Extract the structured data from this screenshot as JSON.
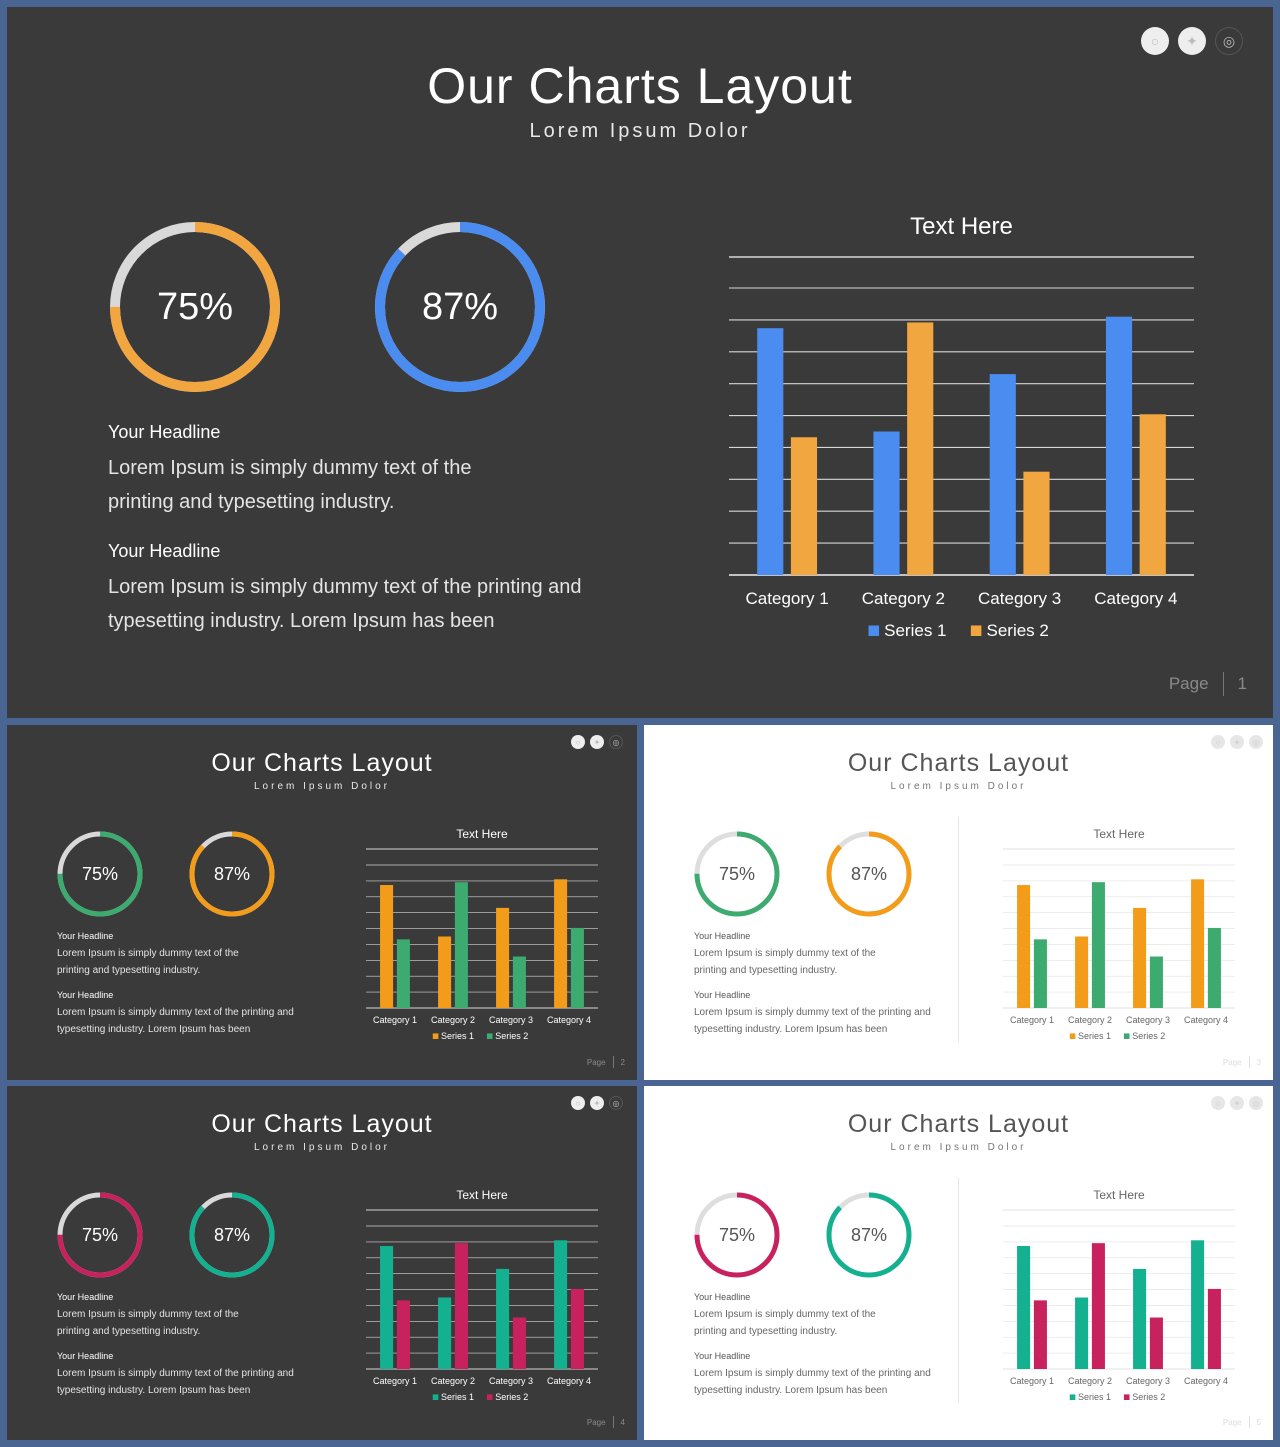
{
  "colors": {
    "blue": "#4a8cf0",
    "orange": "#f2a640",
    "amber": "#f39c1a",
    "green": "#3daa6f",
    "crimson": "#c8225e",
    "teal": "#14b191",
    "ring_track_dark": "#d9d9d9",
    "ring_track_light": "#dedede"
  },
  "slides": [
    {
      "id": "slide-1",
      "theme": "dark",
      "title": "Our Charts Layout",
      "subtitle": "Lorem Ipsum Dolor",
      "social_icons": [
        "pinterest-icon",
        "twitter-icon",
        "dribbble-icon"
      ],
      "donuts": [
        {
          "label": "75%",
          "value": 0.75,
          "color": "#f2a640"
        },
        {
          "label": "87%",
          "value": 0.87,
          "color": "#4a8cf0"
        }
      ],
      "blocks": [
        {
          "headline": "Your Headline",
          "body_lines": [
            "Lorem Ipsum is simply dummy text of the",
            "printing and typesetting industry."
          ]
        },
        {
          "headline": "Your Headline",
          "body_lines": [
            "Lorem Ipsum is simply dummy text of the printing and",
            "typesetting industry. Lorem Ipsum has been"
          ]
        }
      ],
      "page_label": "Page",
      "page_number": "1",
      "chart_data": {
        "type": "bar",
        "title": "Text Here",
        "categories": [
          "Category 1",
          "Category 2",
          "Category 3",
          "Category 4"
        ],
        "series": [
          {
            "name": "Series 1",
            "values": [
              4.3,
              2.5,
              3.5,
              4.5
            ],
            "color": "#4a8cf0"
          },
          {
            "name": "Series 2",
            "values": [
              2.4,
              4.4,
              1.8,
              2.8
            ],
            "color": "#f2a640"
          }
        ],
        "ylim": [
          0,
          5
        ],
        "grid": true,
        "legend": "bottom"
      }
    },
    {
      "id": "slide-2",
      "theme": "dark",
      "title": "Our Charts Layout",
      "subtitle": "Lorem Ipsum Dolor",
      "social_icons": [
        "pinterest-icon",
        "twitter-icon",
        "dribbble-icon"
      ],
      "donuts": [
        {
          "label": "75%",
          "value": 0.75,
          "color": "#3daa6f"
        },
        {
          "label": "87%",
          "value": 0.87,
          "color": "#f39c1a"
        }
      ],
      "blocks": [
        {
          "headline": "Your Headline",
          "body_lines": [
            "Lorem Ipsum is simply dummy text of the",
            "printing and typesetting industry."
          ]
        },
        {
          "headline": "Your Headline",
          "body_lines": [
            "Lorem Ipsum is simply dummy text of the printing and",
            "typesetting industry. Lorem Ipsum has been"
          ]
        }
      ],
      "page_label": "Page",
      "page_number": "2",
      "chart_data": {
        "type": "bar",
        "title": "Text Here",
        "categories": [
          "Category 1",
          "Category 2",
          "Category 3",
          "Category 4"
        ],
        "series": [
          {
            "name": "Series 1",
            "values": [
              4.3,
              2.5,
              3.5,
              4.5
            ],
            "color": "#f39c1a"
          },
          {
            "name": "Series 2",
            "values": [
              2.4,
              4.4,
              1.8,
              2.8
            ],
            "color": "#3daa6f"
          }
        ],
        "ylim": [
          0,
          5
        ],
        "grid": true,
        "legend": "bottom"
      }
    },
    {
      "id": "slide-3",
      "theme": "light",
      "title": "Our Charts Layout",
      "subtitle": "Lorem Ipsum Dolor",
      "social_icons": [
        "pinterest-icon",
        "twitter-icon",
        "dribbble-icon"
      ],
      "donuts": [
        {
          "label": "75%",
          "value": 0.75,
          "color": "#3daa6f"
        },
        {
          "label": "87%",
          "value": 0.87,
          "color": "#f39c1a"
        }
      ],
      "blocks": [
        {
          "headline": "Your Headline",
          "body_lines": [
            "Lorem Ipsum is simply dummy text of the",
            "printing and typesetting industry."
          ]
        },
        {
          "headline": "Your Headline",
          "body_lines": [
            "Lorem Ipsum is simply dummy text of the printing and",
            "typesetting industry. Lorem Ipsum has been"
          ]
        }
      ],
      "page_label": "Page",
      "page_number": "3",
      "chart_data": {
        "type": "bar",
        "title": "Text Here",
        "categories": [
          "Category 1",
          "Category 2",
          "Category 3",
          "Category 4"
        ],
        "series": [
          {
            "name": "Series 1",
            "values": [
              4.3,
              2.5,
              3.5,
              4.5
            ],
            "color": "#f39c1a"
          },
          {
            "name": "Series 2",
            "values": [
              2.4,
              4.4,
              1.8,
              2.8
            ],
            "color": "#3daa6f"
          }
        ],
        "ylim": [
          0,
          5
        ],
        "grid": true,
        "legend": "bottom"
      }
    },
    {
      "id": "slide-4",
      "theme": "dark",
      "title": "Our Charts Layout",
      "subtitle": "Lorem Ipsum Dolor",
      "social_icons": [
        "pinterest-icon",
        "twitter-icon",
        "dribbble-icon"
      ],
      "donuts": [
        {
          "label": "75%",
          "value": 0.75,
          "color": "#c8225e"
        },
        {
          "label": "87%",
          "value": 0.87,
          "color": "#14b191"
        }
      ],
      "blocks": [
        {
          "headline": "Your Headline",
          "body_lines": [
            "Lorem Ipsum is simply dummy text of the",
            "printing and typesetting industry."
          ]
        },
        {
          "headline": "Your Headline",
          "body_lines": [
            "Lorem Ipsum is simply dummy text of the printing and",
            "typesetting industry. Lorem Ipsum has been"
          ]
        }
      ],
      "page_label": "Page",
      "page_number": "4",
      "chart_data": {
        "type": "bar",
        "title": "Text Here",
        "categories": [
          "Category 1",
          "Category 2",
          "Category 3",
          "Category 4"
        ],
        "series": [
          {
            "name": "Series 1",
            "values": [
              4.3,
              2.5,
              3.5,
              4.5
            ],
            "color": "#14b191"
          },
          {
            "name": "Series 2",
            "values": [
              2.4,
              4.4,
              1.8,
              2.8
            ],
            "color": "#c8225e"
          }
        ],
        "ylim": [
          0,
          5
        ],
        "grid": true,
        "legend": "bottom"
      }
    },
    {
      "id": "slide-5",
      "theme": "light",
      "title": "Our Charts Layout",
      "subtitle": "Lorem Ipsum Dolor",
      "social_icons": [
        "pinterest-icon",
        "twitter-icon",
        "dribbble-icon"
      ],
      "donuts": [
        {
          "label": "75%",
          "value": 0.75,
          "color": "#c8225e"
        },
        {
          "label": "87%",
          "value": 0.87,
          "color": "#14b191"
        }
      ],
      "blocks": [
        {
          "headline": "Your Headline",
          "body_lines": [
            "Lorem Ipsum is simply dummy text of the",
            "printing and typesetting industry."
          ]
        },
        {
          "headline": "Your Headline",
          "body_lines": [
            "Lorem Ipsum is simply dummy text of the printing and",
            "typesetting industry. Lorem Ipsum has been"
          ]
        }
      ],
      "page_label": "Page",
      "page_number": "5",
      "chart_data": {
        "type": "bar",
        "title": "Text Here",
        "categories": [
          "Category 1",
          "Category 2",
          "Category 3",
          "Category 4"
        ],
        "series": [
          {
            "name": "Series 1",
            "values": [
              4.3,
              2.5,
              3.5,
              4.5
            ],
            "color": "#14b191"
          },
          {
            "name": "Series 2",
            "values": [
              2.4,
              4.4,
              1.8,
              2.8
            ],
            "color": "#c8225e"
          }
        ],
        "ylim": [
          0,
          5
        ],
        "grid": true,
        "legend": "bottom"
      }
    }
  ]
}
